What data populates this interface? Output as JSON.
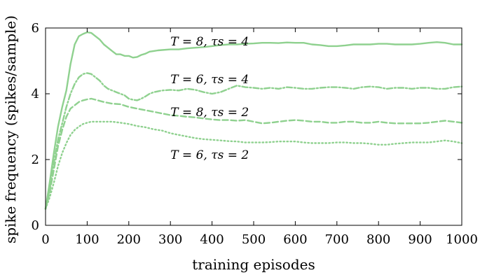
{
  "chart_data": {
    "type": "line",
    "title": "",
    "xlabel": "training episodes",
    "ylabel": "spike frequency (spikes/sample)",
    "xlim": [
      0,
      1000
    ],
    "ylim": [
      0,
      6
    ],
    "xticks": [
      0,
      100,
      200,
      300,
      400,
      500,
      600,
      700,
      800,
      900,
      1000
    ],
    "yticks": [
      0,
      2,
      4,
      6
    ],
    "grid": false,
    "legend": "none",
    "line_color": "#8fd18f",
    "series": [
      {
        "name": "T = 8,  τs = 4",
        "dash": "solid",
        "label_x": 300,
        "label_y": 5.6,
        "points": [
          [
            0,
            0.5
          ],
          [
            10,
            1.3
          ],
          [
            20,
            2.2
          ],
          [
            30,
            3.0
          ],
          [
            40,
            3.6
          ],
          [
            50,
            4.1
          ],
          [
            60,
            4.9
          ],
          [
            70,
            5.5
          ],
          [
            80,
            5.75
          ],
          [
            90,
            5.82
          ],
          [
            100,
            5.87
          ],
          [
            110,
            5.85
          ],
          [
            120,
            5.75
          ],
          [
            130,
            5.65
          ],
          [
            140,
            5.5
          ],
          [
            150,
            5.4
          ],
          [
            160,
            5.3
          ],
          [
            170,
            5.2
          ],
          [
            180,
            5.2
          ],
          [
            190,
            5.15
          ],
          [
            200,
            5.15
          ],
          [
            210,
            5.1
          ],
          [
            220,
            5.12
          ],
          [
            230,
            5.18
          ],
          [
            240,
            5.22
          ],
          [
            250,
            5.28
          ],
          [
            260,
            5.3
          ],
          [
            270,
            5.32
          ],
          [
            280,
            5.33
          ],
          [
            300,
            5.35
          ],
          [
            320,
            5.35
          ],
          [
            340,
            5.38
          ],
          [
            360,
            5.4
          ],
          [
            380,
            5.42
          ],
          [
            400,
            5.45
          ],
          [
            420,
            5.48
          ],
          [
            440,
            5.5
          ],
          [
            460,
            5.5
          ],
          [
            480,
            5.52
          ],
          [
            500,
            5.53
          ],
          [
            520,
            5.55
          ],
          [
            540,
            5.55
          ],
          [
            560,
            5.54
          ],
          [
            580,
            5.56
          ],
          [
            600,
            5.55
          ],
          [
            620,
            5.55
          ],
          [
            640,
            5.5
          ],
          [
            660,
            5.48
          ],
          [
            680,
            5.45
          ],
          [
            700,
            5.45
          ],
          [
            720,
            5.47
          ],
          [
            740,
            5.5
          ],
          [
            760,
            5.5
          ],
          [
            780,
            5.5
          ],
          [
            800,
            5.52
          ],
          [
            820,
            5.52
          ],
          [
            840,
            5.5
          ],
          [
            860,
            5.5
          ],
          [
            880,
            5.5
          ],
          [
            900,
            5.52
          ],
          [
            920,
            5.55
          ],
          [
            940,
            5.57
          ],
          [
            960,
            5.55
          ],
          [
            980,
            5.5
          ],
          [
            1000,
            5.5
          ]
        ]
      },
      {
        "name": "T = 6,  τs = 4",
        "dash": "dashdot",
        "label_x": 300,
        "label_y": 4.45,
        "points": [
          [
            0,
            0.5
          ],
          [
            10,
            1.1
          ],
          [
            20,
            1.9
          ],
          [
            30,
            2.6
          ],
          [
            40,
            3.1
          ],
          [
            50,
            3.6
          ],
          [
            60,
            4.0
          ],
          [
            70,
            4.3
          ],
          [
            80,
            4.5
          ],
          [
            90,
            4.6
          ],
          [
            100,
            4.63
          ],
          [
            110,
            4.6
          ],
          [
            120,
            4.5
          ],
          [
            130,
            4.4
          ],
          [
            140,
            4.25
          ],
          [
            150,
            4.15
          ],
          [
            160,
            4.1
          ],
          [
            170,
            4.05
          ],
          [
            180,
            4.0
          ],
          [
            190,
            3.95
          ],
          [
            200,
            3.85
          ],
          [
            210,
            3.82
          ],
          [
            220,
            3.8
          ],
          [
            230,
            3.85
          ],
          [
            240,
            3.92
          ],
          [
            250,
            4.0
          ],
          [
            260,
            4.05
          ],
          [
            280,
            4.1
          ],
          [
            300,
            4.12
          ],
          [
            320,
            4.1
          ],
          [
            340,
            4.15
          ],
          [
            360,
            4.12
          ],
          [
            380,
            4.05
          ],
          [
            400,
            4.0
          ],
          [
            420,
            4.05
          ],
          [
            440,
            4.15
          ],
          [
            460,
            4.25
          ],
          [
            480,
            4.2
          ],
          [
            500,
            4.18
          ],
          [
            520,
            4.15
          ],
          [
            540,
            4.18
          ],
          [
            560,
            4.15
          ],
          [
            580,
            4.2
          ],
          [
            600,
            4.18
          ],
          [
            620,
            4.15
          ],
          [
            640,
            4.15
          ],
          [
            660,
            4.18
          ],
          [
            680,
            4.2
          ],
          [
            700,
            4.2
          ],
          [
            720,
            4.18
          ],
          [
            740,
            4.15
          ],
          [
            760,
            4.2
          ],
          [
            780,
            4.22
          ],
          [
            800,
            4.2
          ],
          [
            820,
            4.15
          ],
          [
            840,
            4.18
          ],
          [
            860,
            4.18
          ],
          [
            880,
            4.15
          ],
          [
            900,
            4.18
          ],
          [
            920,
            4.18
          ],
          [
            940,
            4.15
          ],
          [
            960,
            4.15
          ],
          [
            980,
            4.2
          ],
          [
            1000,
            4.22
          ]
        ]
      },
      {
        "name": "T = 8,  τs = 2",
        "dash": "dashed",
        "label_x": 300,
        "label_y": 3.45,
        "points": [
          [
            0,
            0.5
          ],
          [
            10,
            1.0
          ],
          [
            20,
            1.7
          ],
          [
            30,
            2.4
          ],
          [
            40,
            2.9
          ],
          [
            50,
            3.3
          ],
          [
            60,
            3.55
          ],
          [
            70,
            3.65
          ],
          [
            80,
            3.75
          ],
          [
            90,
            3.8
          ],
          [
            100,
            3.83
          ],
          [
            110,
            3.85
          ],
          [
            120,
            3.82
          ],
          [
            140,
            3.75
          ],
          [
            160,
            3.7
          ],
          [
            180,
            3.68
          ],
          [
            200,
            3.6
          ],
          [
            220,
            3.55
          ],
          [
            240,
            3.5
          ],
          [
            260,
            3.45
          ],
          [
            280,
            3.4
          ],
          [
            300,
            3.35
          ],
          [
            320,
            3.33
          ],
          [
            340,
            3.3
          ],
          [
            360,
            3.28
          ],
          [
            380,
            3.25
          ],
          [
            400,
            3.22
          ],
          [
            420,
            3.2
          ],
          [
            440,
            3.2
          ],
          [
            460,
            3.18
          ],
          [
            480,
            3.2
          ],
          [
            500,
            3.15
          ],
          [
            520,
            3.1
          ],
          [
            540,
            3.12
          ],
          [
            560,
            3.15
          ],
          [
            580,
            3.18
          ],
          [
            600,
            3.2
          ],
          [
            620,
            3.18
          ],
          [
            640,
            3.15
          ],
          [
            660,
            3.15
          ],
          [
            680,
            3.12
          ],
          [
            700,
            3.12
          ],
          [
            720,
            3.15
          ],
          [
            740,
            3.15
          ],
          [
            760,
            3.12
          ],
          [
            780,
            3.12
          ],
          [
            800,
            3.15
          ],
          [
            820,
            3.12
          ],
          [
            840,
            3.1
          ],
          [
            860,
            3.1
          ],
          [
            880,
            3.1
          ],
          [
            900,
            3.1
          ],
          [
            920,
            3.12
          ],
          [
            940,
            3.15
          ],
          [
            960,
            3.18
          ],
          [
            980,
            3.15
          ],
          [
            1000,
            3.12
          ]
        ]
      },
      {
        "name": "T = 6,  τs = 2",
        "dash": "dotted",
        "label_x": 300,
        "label_y": 2.15,
        "points": [
          [
            0,
            0.5
          ],
          [
            10,
            0.85
          ],
          [
            20,
            1.3
          ],
          [
            30,
            1.8
          ],
          [
            40,
            2.2
          ],
          [
            50,
            2.5
          ],
          [
            60,
            2.75
          ],
          [
            70,
            2.9
          ],
          [
            80,
            3.0
          ],
          [
            90,
            3.08
          ],
          [
            100,
            3.12
          ],
          [
            110,
            3.15
          ],
          [
            120,
            3.15
          ],
          [
            140,
            3.15
          ],
          [
            160,
            3.15
          ],
          [
            180,
            3.12
          ],
          [
            200,
            3.08
          ],
          [
            220,
            3.02
          ],
          [
            240,
            2.98
          ],
          [
            260,
            2.92
          ],
          [
            280,
            2.88
          ],
          [
            300,
            2.8
          ],
          [
            320,
            2.75
          ],
          [
            340,
            2.7
          ],
          [
            360,
            2.65
          ],
          [
            380,
            2.62
          ],
          [
            400,
            2.6
          ],
          [
            420,
            2.58
          ],
          [
            440,
            2.56
          ],
          [
            460,
            2.55
          ],
          [
            480,
            2.52
          ],
          [
            500,
            2.52
          ],
          [
            520,
            2.52
          ],
          [
            540,
            2.53
          ],
          [
            560,
            2.55
          ],
          [
            580,
            2.55
          ],
          [
            600,
            2.55
          ],
          [
            620,
            2.52
          ],
          [
            640,
            2.5
          ],
          [
            660,
            2.5
          ],
          [
            680,
            2.5
          ],
          [
            700,
            2.52
          ],
          [
            720,
            2.52
          ],
          [
            740,
            2.5
          ],
          [
            760,
            2.5
          ],
          [
            780,
            2.48
          ],
          [
            800,
            2.45
          ],
          [
            820,
            2.45
          ],
          [
            840,
            2.48
          ],
          [
            860,
            2.5
          ],
          [
            880,
            2.52
          ],
          [
            900,
            2.52
          ],
          [
            920,
            2.52
          ],
          [
            940,
            2.55
          ],
          [
            960,
            2.58
          ],
          [
            980,
            2.55
          ],
          [
            1000,
            2.5
          ]
        ]
      }
    ]
  }
}
